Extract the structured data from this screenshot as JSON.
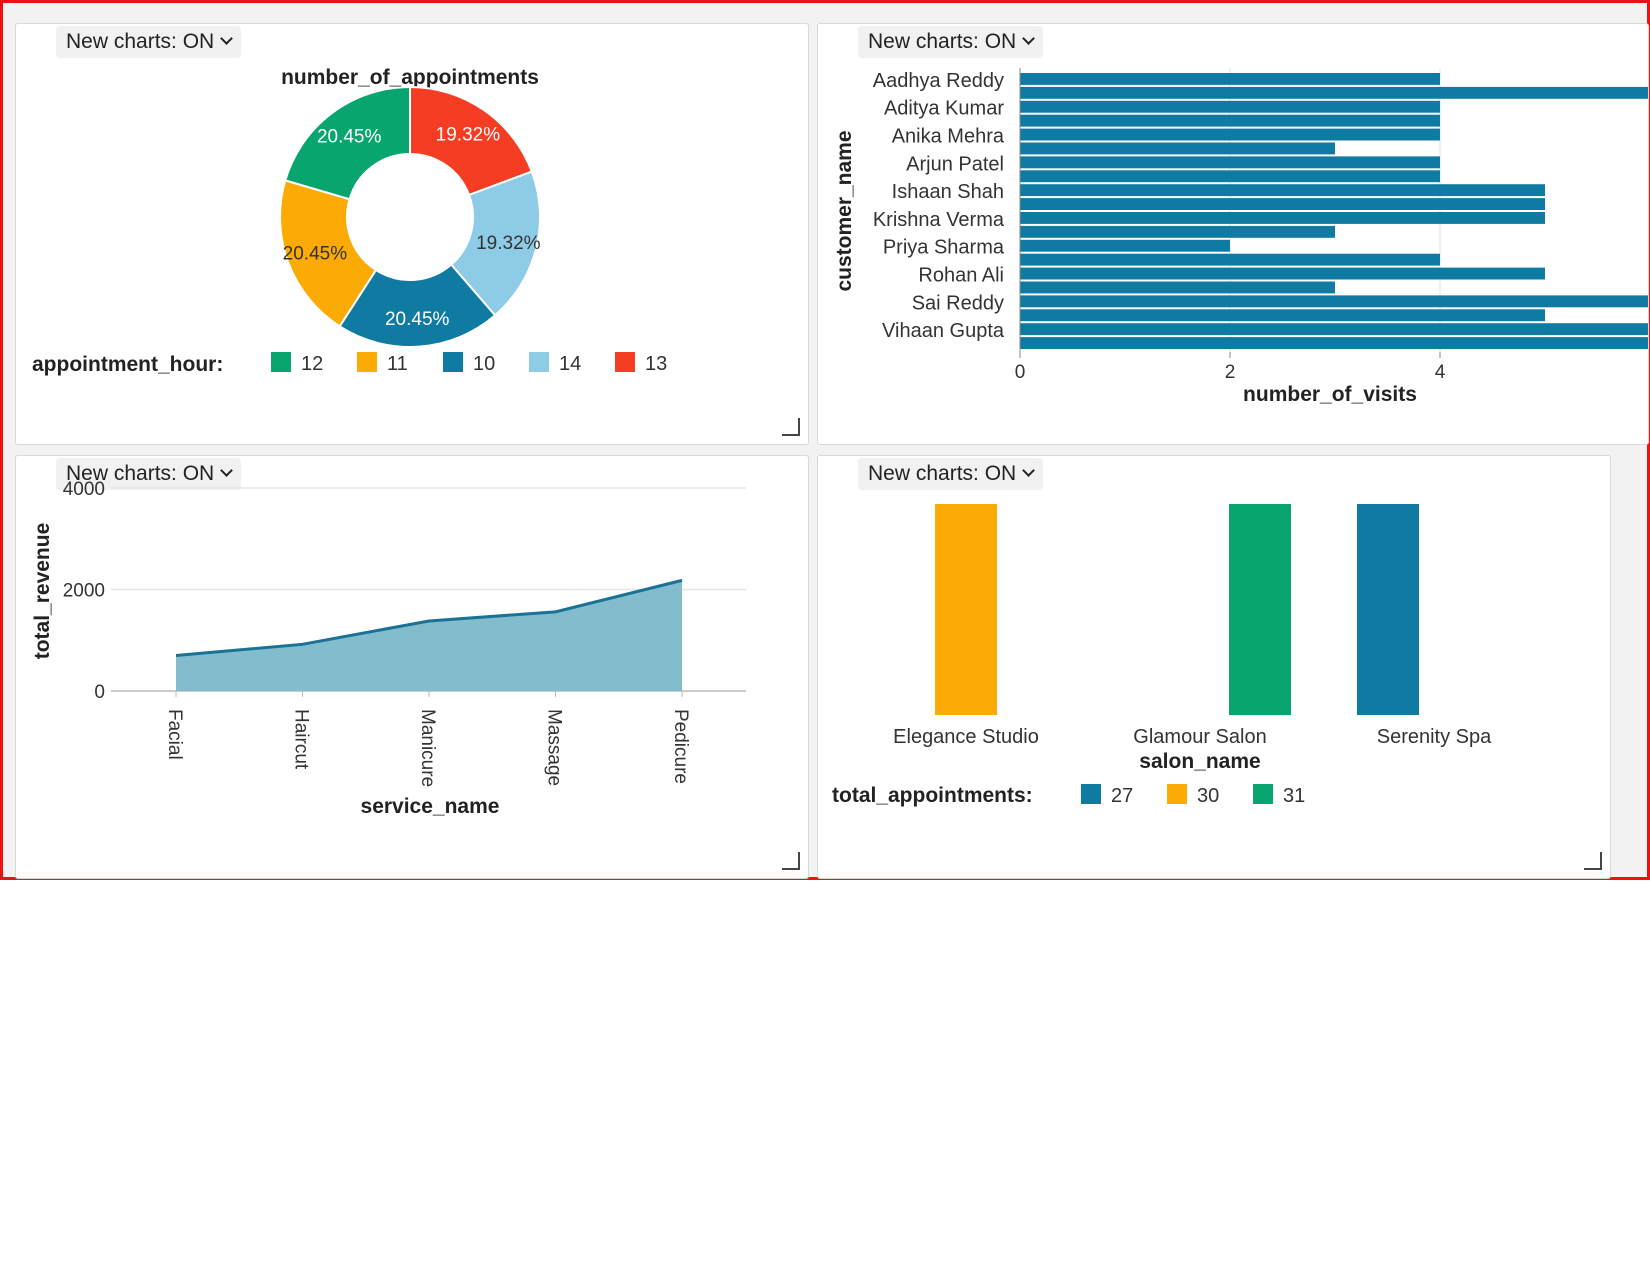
{
  "toggles": {
    "p1": "New charts: ON",
    "p2": "New charts: ON",
    "p3": "New charts: ON",
    "p4": "New charts: ON"
  },
  "colors": {
    "teal": "#0f7ba2",
    "green": "#08a56e",
    "orange": "#fbab04",
    "lightblue": "#8dcbe6",
    "red": "#f53d23",
    "area": "#83bccd",
    "frame": "#ee1111"
  },
  "chart_data": [
    {
      "type": "pie",
      "donut": true,
      "title": "number_of_appointments",
      "legend_title": "appointment_hour:",
      "slices": [
        {
          "label": "13",
          "value": 19.32,
          "text": "19.32%",
          "color": "#f53d23"
        },
        {
          "label": "14",
          "value": 19.32,
          "text": "19.32%",
          "color": "#8dcbe6"
        },
        {
          "label": "10",
          "value": 20.45,
          "text": "20.45%",
          "color": "#0f7ba2"
        },
        {
          "label": "11",
          "value": 20.45,
          "text": "20.45%",
          "color": "#fbab04"
        },
        {
          "label": "12",
          "value": 20.45,
          "text": "20.45%",
          "color": "#08a56e"
        }
      ],
      "legend_order": [
        "12",
        "11",
        "10",
        "14",
        "13"
      ]
    },
    {
      "type": "bar",
      "orientation": "horizontal",
      "xlabel": "number_of_visits",
      "ylabel": "customer_name",
      "xlim": [
        0,
        6
      ],
      "xticks": [
        "0",
        "2",
        "4"
      ],
      "ytick_labels": [
        "Aadhya Reddy",
        "Aditya Kumar",
        "Anika Mehra",
        "Arjun Patel",
        "Ishaan Shah",
        "Krishna Verma",
        "Priya Sharma",
        "Rohan Ali",
        "Sai Reddy",
        "Vihaan Gupta"
      ],
      "values": [
        4,
        6,
        4,
        4,
        4,
        3,
        4,
        4,
        5,
        5,
        5,
        3,
        2,
        4,
        5,
        3,
        6,
        5,
        6,
        6
      ],
      "color": "#0f7ba2"
    },
    {
      "type": "area",
      "xlabel": "service_name",
      "ylabel": "total_revenue",
      "categories": [
        "Facial",
        "Haircut",
        "Manicure",
        "Massage",
        "Pedicure"
      ],
      "values": [
        700,
        920,
        1380,
        1560,
        2180
      ],
      "ylim": [
        0,
        4000
      ],
      "yticks": [
        "0",
        "2000",
        "4000"
      ],
      "color": "#83bccd",
      "line_color": "#1a7294"
    },
    {
      "type": "bar",
      "xlabel": "salon_name",
      "categories": [
        "Elegance Studio",
        "Glamour Salon",
        "Serenity Spa"
      ],
      "legend_title": "total_appointments:",
      "legend": [
        {
          "label": "27",
          "color": "#0f7ba2"
        },
        {
          "label": "30",
          "color": "#fbab04"
        },
        {
          "label": "31",
          "color": "#08a56e"
        }
      ],
      "bars": [
        {
          "category": "Elegance Studio",
          "value": 30,
          "color": "#fbab04"
        },
        {
          "category": "Glamour Salon",
          "value": 31,
          "color": "#08a56e"
        },
        {
          "category": "Serenity Spa",
          "value": 27,
          "color": "#0f7ba2"
        }
      ]
    }
  ]
}
